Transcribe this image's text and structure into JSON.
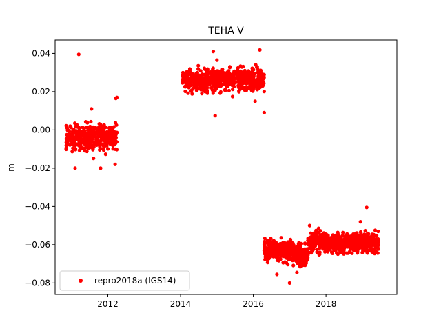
{
  "chart_data": {
    "type": "scatter",
    "title": "TEHA V",
    "xlabel": "",
    "ylabel": "m",
    "xlim": [
      2010.55,
      2019.95
    ],
    "ylim": [
      -0.086,
      0.047
    ],
    "x_ticks": [
      2012,
      2014,
      2016,
      2018
    ],
    "x_tick_labels": [
      "2012",
      "2014",
      "2016",
      "2018"
    ],
    "y_ticks": [
      -0.08,
      -0.06,
      -0.04,
      -0.02,
      0.0,
      0.02,
      0.04
    ],
    "y_tick_labels": [
      "−0.08",
      "−0.06",
      "−0.04",
      "−0.02",
      "0.00",
      "0.02",
      "0.04"
    ],
    "grid": false,
    "legend_position": "lower-left",
    "marker_color": "#ff0000",
    "series": [
      {
        "name": "repro2018a (IGS14)",
        "segments": [
          {
            "x_start": 2010.85,
            "x_end": 2012.25,
            "mean": -0.004,
            "spread": 0.005,
            "count": 420
          },
          {
            "x_start": 2014.05,
            "x_end": 2016.3,
            "mean": 0.0265,
            "spread": 0.004,
            "count": 700
          },
          {
            "x_start": 2016.3,
            "x_end": 2017.1,
            "mean": -0.063,
            "spread": 0.004,
            "count": 280
          },
          {
            "x_start": 2017.1,
            "x_end": 2017.5,
            "mean": -0.065,
            "spread": 0.004,
            "count": 150
          },
          {
            "x_start": 2017.5,
            "x_end": 2018.0,
            "mean": -0.058,
            "spread": 0.004,
            "count": 170
          },
          {
            "x_start": 2018.0,
            "x_end": 2019.45,
            "mean": -0.059,
            "spread": 0.0035,
            "count": 460
          }
        ],
        "outliers": [
          {
            "x": 2011.2,
            "y": 0.0395
          },
          {
            "x": 2012.25,
            "y": 0.017
          },
          {
            "x": 2012.22,
            "y": 0.0165
          },
          {
            "x": 2011.1,
            "y": -0.02
          },
          {
            "x": 2011.55,
            "y": 0.011
          },
          {
            "x": 2011.8,
            "y": -0.02
          },
          {
            "x": 2012.2,
            "y": -0.018
          },
          {
            "x": 2014.9,
            "y": 0.041
          },
          {
            "x": 2014.95,
            "y": 0.0075
          },
          {
            "x": 2015.0,
            "y": 0.0365
          },
          {
            "x": 2016.18,
            "y": 0.0418
          },
          {
            "x": 2016.3,
            "y": 0.009
          },
          {
            "x": 2016.05,
            "y": 0.015
          },
          {
            "x": 2019.12,
            "y": -0.0405
          },
          {
            "x": 2017.0,
            "y": -0.08
          },
          {
            "x": 2017.2,
            "y": -0.0745
          },
          {
            "x": 2016.65,
            "y": -0.0755
          },
          {
            "x": 2017.55,
            "y": -0.05
          },
          {
            "x": 2018.95,
            "y": -0.048
          }
        ]
      }
    ]
  }
}
